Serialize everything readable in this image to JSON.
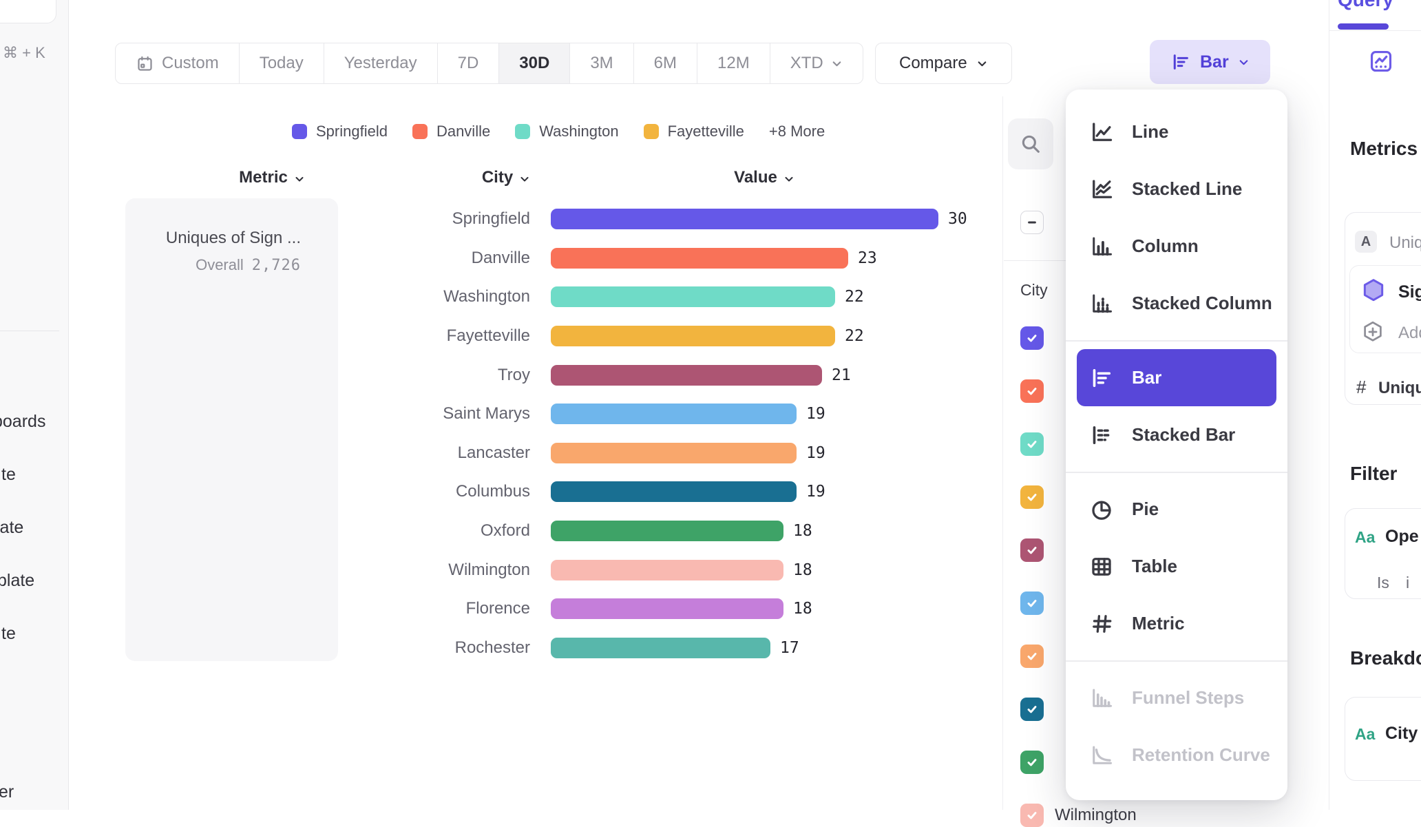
{
  "sidebar_left": {
    "search_shortcut": "⌘ + K",
    "nav_fragments": [
      {
        "label": "boards"
      },
      {
        "label": "te"
      },
      {
        "label": "late"
      },
      {
        "label": "blate"
      },
      {
        "label": "te"
      },
      {
        "label": "er"
      }
    ]
  },
  "toolbar": {
    "date_ranges": [
      {
        "label": "Custom",
        "icon": "calendar-icon"
      },
      {
        "label": "Today"
      },
      {
        "label": "Yesterday"
      },
      {
        "label": "7D"
      },
      {
        "label": "30D",
        "active": true
      },
      {
        "label": "3M"
      },
      {
        "label": "6M"
      },
      {
        "label": "12M"
      },
      {
        "label": "XTD",
        "trailing_icon": "chevron-down-icon"
      }
    ],
    "compare_label": "Compare",
    "chart_type_label": "Bar",
    "chart_type_icon": "bar-chart-icon"
  },
  "legend": {
    "items": [
      {
        "label": "Springfield",
        "color": "#6558E8"
      },
      {
        "label": "Danville",
        "color": "#F97258"
      },
      {
        "label": "Washington",
        "color": "#6FDBC7"
      },
      {
        "label": "Fayetteville",
        "color": "#F2B43E"
      },
      {
        "label": "+8 More"
      }
    ]
  },
  "columns": {
    "metric": "Metric",
    "city": "City",
    "value": "Value"
  },
  "metric_panel": {
    "title": "Uniques of Sign ...",
    "overall_label": "Overall",
    "overall_value": "2,726"
  },
  "chart_data": {
    "type": "bar",
    "orientation": "horizontal",
    "metric": "Uniques of Sign ...",
    "overall": "2,726",
    "categories": [
      "Springfield",
      "Danville",
      "Washington",
      "Fayetteville",
      "Troy",
      "Saint Marys",
      "Lancaster",
      "Columbus",
      "Oxford",
      "Wilmington",
      "Florence",
      "Rochester"
    ],
    "values": [
      30,
      23,
      22,
      22,
      21,
      19,
      19,
      19,
      18,
      18,
      18,
      17
    ],
    "colors": [
      "#6558E8",
      "#F97258",
      "#6FDBC7",
      "#F2B43E",
      "#AD5573",
      "#6FB6EC",
      "#F9A76C",
      "#196F92",
      "#3EA367",
      "#F9B9B1",
      "#C57EDA",
      "#58B7AB"
    ],
    "xlim": [
      0,
      30
    ],
    "value_labels_shown": true
  },
  "breakdown_panel": {
    "search_icon": "search-icon",
    "select_all_state": "indeterminate",
    "column_label": "City",
    "rows": [
      {
        "color": "#6558E8",
        "checked": true
      },
      {
        "color": "#F97258",
        "checked": true
      },
      {
        "color": "#6FDBC7",
        "checked": true
      },
      {
        "color": "#F2B43E",
        "checked": true
      },
      {
        "color": "#AD5573",
        "checked": true
      },
      {
        "color": "#6FB6EC",
        "checked": true
      },
      {
        "color": "#F9A76C",
        "checked": true
      },
      {
        "color": "#196F92",
        "checked": true
      },
      {
        "color": "#3EA367",
        "checked": true
      },
      {
        "color": "#F9B9B1",
        "checked": true,
        "label": "Wilmington"
      }
    ]
  },
  "chart_type_menu": {
    "items": [
      {
        "label": "Line",
        "icon": "line-chart-icon"
      },
      {
        "label": "Stacked Line",
        "icon": "stacked-line-icon"
      },
      {
        "label": "Column",
        "icon": "column-chart-icon"
      },
      {
        "label": "Stacked Column",
        "icon": "stacked-column-icon"
      },
      {
        "label": "Bar",
        "icon": "bar-chart-icon",
        "selected": true,
        "divider_before": true
      },
      {
        "label": "Stacked Bar",
        "icon": "stacked-bar-icon"
      },
      {
        "label": "Pie",
        "icon": "pie-chart-icon",
        "divider_before": true
      },
      {
        "label": "Table",
        "icon": "table-icon"
      },
      {
        "label": "Metric",
        "icon": "metric-icon"
      },
      {
        "label": "Funnel Steps",
        "icon": "funnel-steps-icon",
        "disabled": true,
        "divider_before": true
      },
      {
        "label": "Retention Curve",
        "icon": "retention-curve-icon",
        "disabled": true
      }
    ]
  },
  "sidebar_right": {
    "tab_label": "Query",
    "panel_icon": "insights-chart-icon",
    "metrics_heading": "Metrics",
    "metric_card": {
      "type_badge": "A",
      "title_fragment": "Uniq",
      "event_icon": "hexagon-icon",
      "event_fragment": "Sig",
      "add_icon": "hexagon-plus-icon",
      "add_fragment": "Add",
      "measure_symbol": "#",
      "measure_fragment": "Uniqu"
    },
    "filter_heading": "Filter",
    "filter_card": {
      "type_badge": "Aa",
      "property_fragment": "Ope",
      "operator": "Is",
      "value_fragment": "i"
    },
    "breakdown_heading": "Breakdown",
    "breakdown_card": {
      "type_badge": "Aa",
      "property": "City"
    }
  },
  "colors": {
    "accent": "#5847D9",
    "accent_light_bg": "#E5E1FB",
    "aa_badge_green": "#2FA385",
    "hexagon_fill": "#B3AAF4"
  }
}
